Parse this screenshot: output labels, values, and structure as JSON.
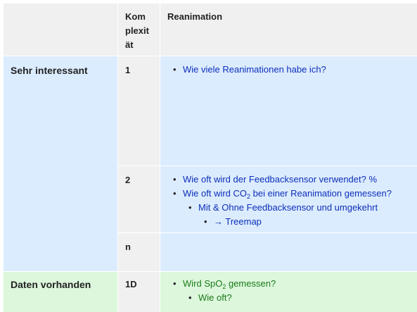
{
  "table": {
    "header": {
      "col_complexity": "Komplexität",
      "col_complexity_lines": [
        "Kom",
        "plexit",
        "ät"
      ],
      "col_topic": "Reanimation"
    },
    "rows": [
      {
        "label": "Sehr interessant",
        "levels": [
          {
            "level": "1",
            "items": [
              {
                "text": "Wie viele Reanimationen habe ich?"
              }
            ]
          },
          {
            "level": "2",
            "items": [
              {
                "text": "Wie oft wird der Feedbacksensor verwendet? %"
              },
              {
                "text_before": "Wie oft wird CO",
                "sub": "2",
                "text_after": " bei einer Reanimation gemessen?"
              },
              {
                "text": "Mit & Ohne Feedbacksensor und umgekehrt"
              },
              {
                "text": "→ Treemap"
              }
            ]
          },
          {
            "level": "n",
            "items": []
          }
        ]
      },
      {
        "label": "Daten vorhanden",
        "levels": [
          {
            "level": "1D",
            "items": [
              {
                "text_before": "Wird SpO",
                "sub": "2",
                "text_after": " gemessen?"
              },
              {
                "text": "Wie oft?"
              }
            ]
          }
        ]
      }
    ]
  },
  "colors": {
    "header_bg": "#f0f0f0",
    "blue_row_bg": "#dcecff",
    "green_row_bg": "#dcf7dc",
    "blue_link": "#0b2fb8",
    "green_text": "#1a7a1a"
  }
}
